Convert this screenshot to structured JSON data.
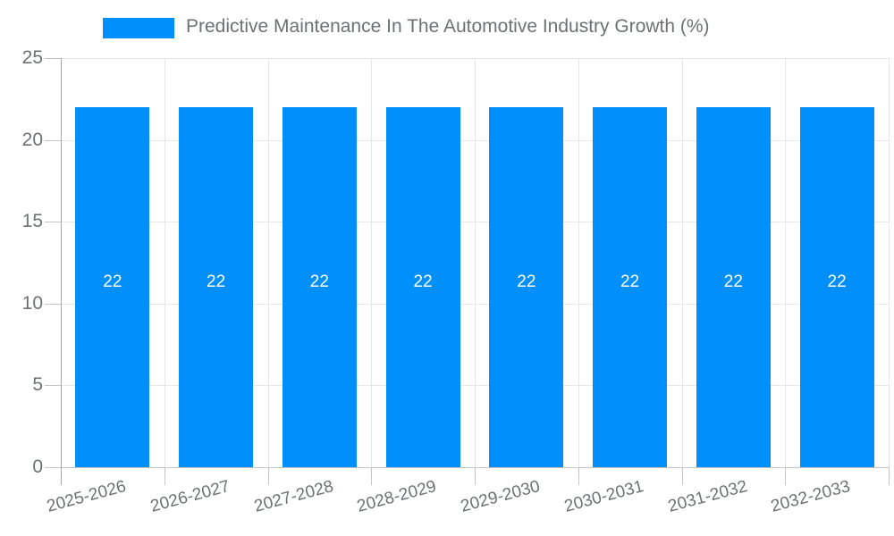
{
  "legend": {
    "label": "Predictive Maintenance In The Automotive Industry Growth (%)"
  },
  "chart_data": {
    "type": "bar",
    "title": "Predictive Maintenance In The Automotive Industry Growth (%)",
    "categories": [
      "2025-2026",
      "2026-2027",
      "2027-2028",
      "2028-2029",
      "2029-2030",
      "2030-2031",
      "2031-2032",
      "2032-2033"
    ],
    "values": [
      22,
      22,
      22,
      22,
      22,
      22,
      22,
      22
    ],
    "xlabel": "",
    "ylabel": "",
    "ylim": [
      0,
      25
    ],
    "yticks": [
      0,
      5,
      10,
      15,
      20,
      25
    ],
    "grid": true,
    "legend_position": "top",
    "value_labels_shown": true,
    "colors": {
      "bar": "#008FFB",
      "grid": "#e7e7e7",
      "axis": "#a6a6a6",
      "tick": "#c4c4c4",
      "text": "#6e7173",
      "value_text": "#ffffff",
      "background": "#ffffff"
    }
  }
}
